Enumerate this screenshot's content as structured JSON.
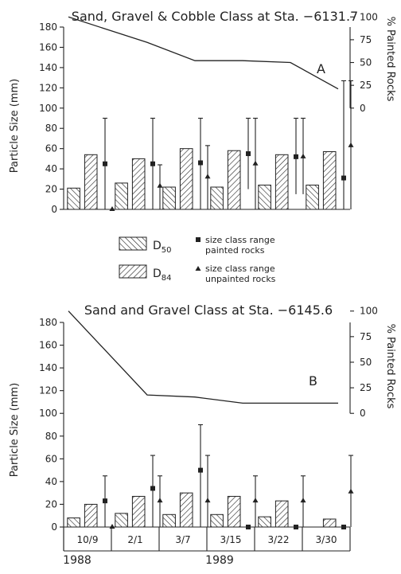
{
  "chart_data": [
    {
      "id": "A",
      "type": "bar",
      "title": "Sand, Gravel & Cobble Class at Sta. −6131.7",
      "panel_label": "A",
      "ylabel": "Particle Size (mm)",
      "y2label": "% Painted Rocks",
      "ylim": [
        0,
        180
      ],
      "yticks": [
        "0",
        "20",
        "40",
        "60",
        "80",
        "100",
        "120",
        "140",
        "160",
        "180"
      ],
      "y2lim": [
        0,
        100
      ],
      "y2ticks": [
        "0",
        "25",
        "50",
        "75",
        "100"
      ],
      "y2_offset": 100,
      "categories": [
        "10/9",
        "2/1",
        "3/7",
        "3/15",
        "3/22",
        "3/30"
      ],
      "series": [
        {
          "name": "D50",
          "values": [
            21,
            26,
            22,
            22,
            24,
            24
          ]
        },
        {
          "name": "D84",
          "values": [
            54,
            50,
            60,
            58,
            54,
            57
          ]
        }
      ],
      "painted": [
        {
          "value": 45,
          "low": 0,
          "high": 90
        },
        {
          "value": 45,
          "low": 0,
          "high": 90
        },
        {
          "value": 46,
          "low": 0,
          "high": 90
        },
        {
          "value": 55,
          "low": 20,
          "high": 90
        },
        {
          "value": 52,
          "low": 15,
          "high": 90
        },
        {
          "value": 31,
          "low": 0,
          "high": 127
        }
      ],
      "unpainted": [
        {
          "value": 0,
          "low": 0,
          "high": 0
        },
        {
          "value": 23,
          "low": 0,
          "high": 44
        },
        {
          "value": 32,
          "low": 0,
          "high": 63
        },
        {
          "value": 45,
          "low": 0,
          "high": 90
        },
        {
          "value": 52,
          "low": 15,
          "high": 90
        },
        {
          "value": 63,
          "low": 0,
          "high": 127
        }
      ],
      "percent_painted": [
        100,
        72,
        52,
        52,
        50,
        21
      ]
    },
    {
      "id": "B",
      "type": "bar",
      "title": "Sand and Gravel Class at Sta. −6145.6",
      "panel_label": "B",
      "ylabel": "Particle Size (mm)",
      "y2label": "% Painted Rocks",
      "ylim": [
        0,
        180
      ],
      "yticks": [
        "0",
        "20",
        "40",
        "60",
        "80",
        "100",
        "120",
        "140",
        "160",
        "180"
      ],
      "y2lim": [
        0,
        100
      ],
      "y2ticks": [
        "0",
        "25",
        "50",
        "75",
        "100"
      ],
      "y2_offset": 100,
      "categories": [
        "10/9",
        "2/1",
        "3/7",
        "3/15",
        "3/22",
        "3/30"
      ],
      "year_labels": [
        "1988",
        "1989"
      ],
      "series": [
        {
          "name": "D50",
          "values": [
            8,
            12,
            11,
            11,
            9,
            0
          ]
        },
        {
          "name": "D84",
          "values": [
            20,
            27,
            30,
            27,
            23,
            7
          ]
        }
      ],
      "painted": [
        {
          "value": 23,
          "low": 0,
          "high": 45
        },
        {
          "value": 34,
          "low": 0,
          "high": 63
        },
        {
          "value": 50,
          "low": 0,
          "high": 90
        },
        {
          "value": 0,
          "low": 0,
          "high": 0
        },
        {
          "value": 0,
          "low": 0,
          "high": 0
        },
        {
          "value": 0,
          "low": 0,
          "high": 0
        }
      ],
      "unpainted": [
        {
          "value": 0,
          "low": 0,
          "high": 0
        },
        {
          "value": 23,
          "low": 0,
          "high": 45
        },
        {
          "value": 23,
          "low": 0,
          "high": 63
        },
        {
          "value": 23,
          "low": 0,
          "high": 45
        },
        {
          "value": 23,
          "low": 0,
          "high": 45
        },
        {
          "value": 31,
          "low": 0,
          "high": 63
        }
      ],
      "percent_painted": [
        100,
        18,
        16,
        10,
        10,
        10
      ]
    }
  ],
  "legend": {
    "d50": {
      "label": "D",
      "sub": "50"
    },
    "d84": {
      "label": "D",
      "sub": "84"
    },
    "painted": {
      "line1": "size class range",
      "line2": "painted rocks"
    },
    "unpainted": {
      "line1": "size class range",
      "line2": "unpainted rocks"
    }
  },
  "colors": {
    "ink": "#222222",
    "bar_fill": "#ffffff",
    "background": "#ffffff"
  }
}
